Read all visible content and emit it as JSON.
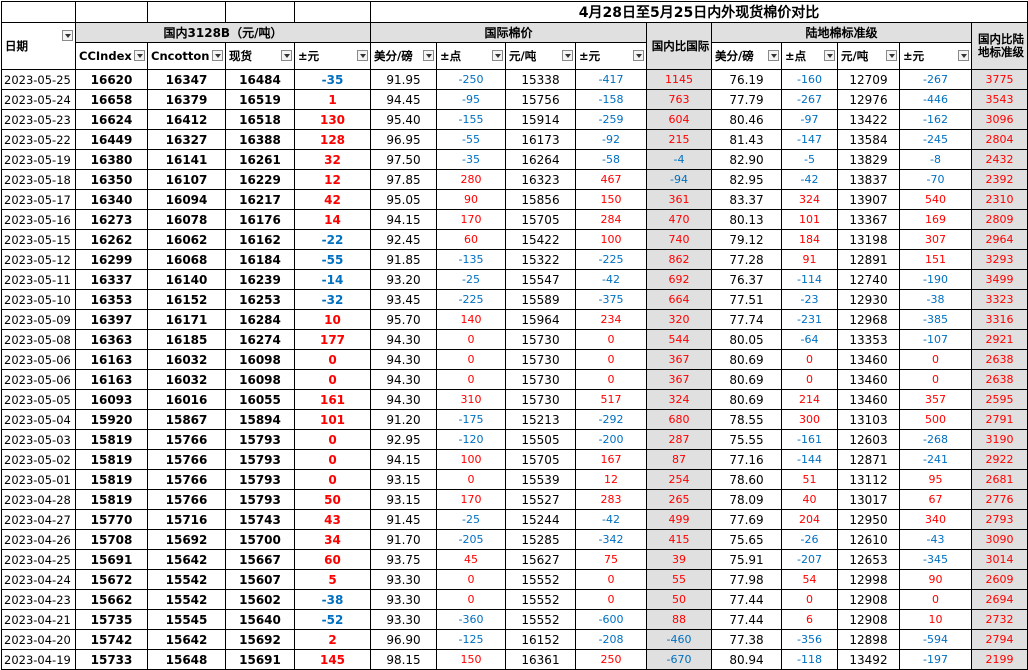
{
  "title": "4月28日至5月25日内外现货棉价对比",
  "groups": {
    "domestic": "国内3128B（元/吨）",
    "intl": "国际棉价",
    "land": "陆地棉标准级"
  },
  "headers": [
    "日期",
    "CCIndex",
    "Cncotton",
    "现货",
    "±元",
    "美分/磅",
    "±点",
    "元/吨",
    "±元",
    "国内比国际",
    "美分/磅",
    "±点",
    "元/吨",
    "±元",
    "国内比陆地标准级"
  ],
  "rows": [
    [
      "2023-05-25",
      "16620",
      "16347",
      "16484",
      "-35",
      "91.95",
      "-250",
      "15338",
      "-417",
      "1145",
      "76.19",
      "-160",
      "12709",
      "-267",
      "3775"
    ],
    [
      "2023-05-24",
      "16658",
      "16379",
      "16519",
      "1",
      "94.45",
      "-95",
      "15756",
      "-158",
      "763",
      "77.79",
      "-267",
      "12976",
      "-446",
      "3543"
    ],
    [
      "2023-05-23",
      "16624",
      "16412",
      "16518",
      "130",
      "95.40",
      "-155",
      "15914",
      "-259",
      "604",
      "80.46",
      "-97",
      "13422",
      "-162",
      "3096"
    ],
    [
      "2023-05-22",
      "16449",
      "16327",
      "16388",
      "128",
      "96.95",
      "-55",
      "16173",
      "-92",
      "215",
      "81.43",
      "-147",
      "13584",
      "-245",
      "2804"
    ],
    [
      "2023-05-19",
      "16380",
      "16141",
      "16261",
      "32",
      "97.50",
      "-35",
      "16264",
      "-58",
      "-4",
      "82.90",
      "-5",
      "13829",
      "-8",
      "2432"
    ],
    [
      "2023-05-18",
      "16350",
      "16107",
      "16229",
      "12",
      "97.85",
      "280",
      "16323",
      "467",
      "-94",
      "82.95",
      "-42",
      "13837",
      "-70",
      "2392"
    ],
    [
      "2023-05-17",
      "16340",
      "16094",
      "16217",
      "42",
      "95.05",
      "90",
      "15856",
      "150",
      "361",
      "83.37",
      "324",
      "13907",
      "540",
      "2310"
    ],
    [
      "2023-05-16",
      "16273",
      "16078",
      "16176",
      "14",
      "94.15",
      "170",
      "15705",
      "284",
      "470",
      "80.13",
      "101",
      "13367",
      "169",
      "2809"
    ],
    [
      "2023-05-15",
      "16262",
      "16062",
      "16162",
      "-22",
      "92.45",
      "60",
      "15422",
      "100",
      "740",
      "79.12",
      "184",
      "13198",
      "307",
      "2964"
    ],
    [
      "2023-05-12",
      "16299",
      "16068",
      "16184",
      "-55",
      "91.85",
      "-135",
      "15322",
      "-225",
      "862",
      "77.28",
      "91",
      "12891",
      "151",
      "3293"
    ],
    [
      "2023-05-11",
      "16337",
      "16140",
      "16239",
      "-14",
      "93.20",
      "-25",
      "15547",
      "-42",
      "692",
      "76.37",
      "-114",
      "12740",
      "-190",
      "3499"
    ],
    [
      "2023-05-10",
      "16353",
      "16152",
      "16253",
      "-32",
      "93.45",
      "-225",
      "15589",
      "-375",
      "664",
      "77.51",
      "-23",
      "12930",
      "-38",
      "3323"
    ],
    [
      "2023-05-09",
      "16397",
      "16171",
      "16284",
      "10",
      "95.70",
      "140",
      "15964",
      "234",
      "320",
      "77.74",
      "-231",
      "12968",
      "-385",
      "3316"
    ],
    [
      "2023-05-08",
      "16363",
      "16185",
      "16274",
      "177",
      "94.30",
      "0",
      "15730",
      "0",
      "544",
      "80.05",
      "-64",
      "13353",
      "-107",
      "2921"
    ],
    [
      "2023-05-06",
      "16163",
      "16032",
      "16098",
      "0",
      "94.30",
      "0",
      "15730",
      "0",
      "367",
      "80.69",
      "0",
      "13460",
      "0",
      "2638"
    ],
    [
      "2023-05-06",
      "16163",
      "16032",
      "16098",
      "0",
      "94.30",
      "0",
      "15730",
      "0",
      "367",
      "80.69",
      "0",
      "13460",
      "0",
      "2638"
    ],
    [
      "2023-05-05",
      "16093",
      "16016",
      "16055",
      "161",
      "94.30",
      "310",
      "15730",
      "517",
      "324",
      "80.69",
      "214",
      "13460",
      "357",
      "2595"
    ],
    [
      "2023-05-04",
      "15920",
      "15867",
      "15894",
      "101",
      "91.20",
      "-175",
      "15213",
      "-292",
      "680",
      "78.55",
      "300",
      "13103",
      "500",
      "2791"
    ],
    [
      "2023-05-03",
      "15819",
      "15766",
      "15793",
      "0",
      "92.95",
      "-120",
      "15505",
      "-200",
      "287",
      "75.55",
      "-161",
      "12603",
      "-268",
      "3190"
    ],
    [
      "2023-05-02",
      "15819",
      "15766",
      "15793",
      "0",
      "94.15",
      "100",
      "15705",
      "167",
      "87",
      "77.16",
      "-144",
      "12871",
      "-241",
      "2922"
    ],
    [
      "2023-05-01",
      "15819",
      "15766",
      "15793",
      "0",
      "93.15",
      "0",
      "15539",
      "12",
      "254",
      "78.60",
      "51",
      "13112",
      "95",
      "2681"
    ],
    [
      "2023-04-28",
      "15819",
      "15766",
      "15793",
      "50",
      "93.15",
      "170",
      "15527",
      "283",
      "265",
      "78.09",
      "40",
      "13017",
      "67",
      "2776"
    ],
    [
      "2023-04-27",
      "15770",
      "15716",
      "15743",
      "43",
      "91.45",
      "-25",
      "15244",
      "-42",
      "499",
      "77.69",
      "204",
      "12950",
      "340",
      "2793"
    ],
    [
      "2023-04-26",
      "15708",
      "15692",
      "15700",
      "34",
      "91.70",
      "-205",
      "15285",
      "-342",
      "415",
      "75.65",
      "-26",
      "12610",
      "-43",
      "3090"
    ],
    [
      "2023-04-25",
      "15691",
      "15642",
      "15667",
      "60",
      "93.75",
      "45",
      "15627",
      "75",
      "39",
      "75.91",
      "-207",
      "12653",
      "-345",
      "3014"
    ],
    [
      "2023-04-24",
      "15672",
      "15542",
      "15607",
      "5",
      "93.30",
      "0",
      "15552",
      "0",
      "55",
      "77.98",
      "54",
      "12998",
      "90",
      "2609"
    ],
    [
      "2023-04-23",
      "15662",
      "15542",
      "15602",
      "-38",
      "93.30",
      "0",
      "15552",
      "0",
      "50",
      "77.44",
      "0",
      "12908",
      "0",
      "2694"
    ],
    [
      "2023-04-21",
      "15735",
      "15545",
      "15640",
      "-52",
      "93.30",
      "-360",
      "15552",
      "-600",
      "88",
      "77.44",
      "6",
      "12908",
      "10",
      "2732"
    ],
    [
      "2023-04-20",
      "15742",
      "15642",
      "15692",
      "2",
      "96.90",
      "-125",
      "16152",
      "-208",
      "-460",
      "77.38",
      "-356",
      "12898",
      "-594",
      "2794"
    ],
    [
      "2023-04-19",
      "15733",
      "15648",
      "15691",
      "145",
      "98.15",
      "150",
      "16361",
      "250",
      "-670",
      "80.94",
      "-118",
      "13492",
      "-197",
      "2199"
    ]
  ],
  "colors": {
    "positive": "#ff0000",
    "negative": "#0070c0",
    "header_gray": "#e0e0e0",
    "grid_line": "#000000"
  }
}
